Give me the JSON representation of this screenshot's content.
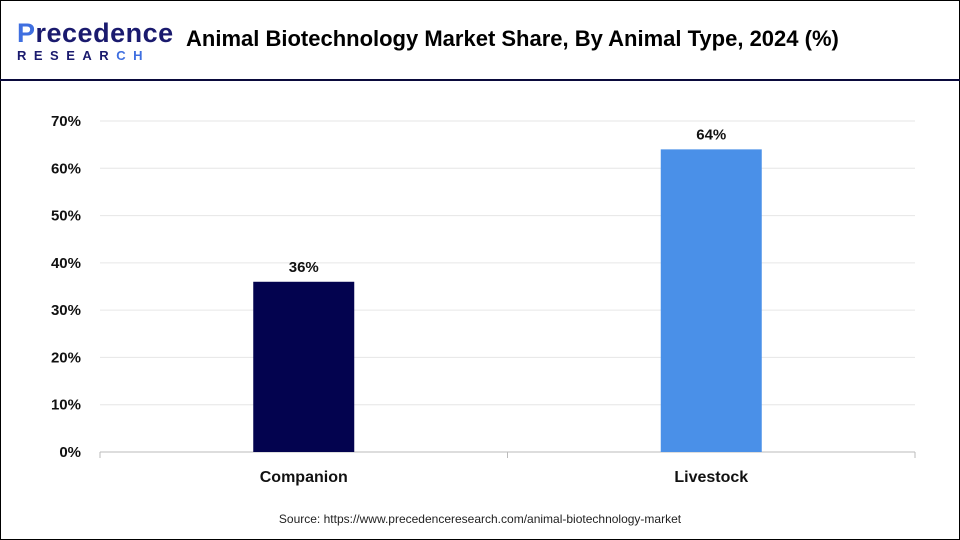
{
  "logo": {
    "line1": "Precedence",
    "line2": "RESEARCH"
  },
  "header": {
    "title": "Animal Biotechnology Market Share, By Animal Type, 2024 (%)"
  },
  "source": "Source: https://www.precedenceresearch.com/animal-biotechnology-market",
  "chart_data": {
    "type": "bar",
    "title": "Animal Biotechnology Market Share, By Animal Type, 2024 (%)",
    "categories": [
      "Companion",
      "Livestock"
    ],
    "values": [
      36,
      64
    ],
    "data_labels": [
      "36%",
      "64%"
    ],
    "colors": [
      "#03034f",
      "#4a90e8"
    ],
    "ylim": [
      0,
      70
    ],
    "yticks": [
      "0%",
      "10%",
      "20%",
      "30%",
      "40%",
      "50%",
      "60%",
      "70%"
    ],
    "grid": true,
    "xlabel": "",
    "ylabel": ""
  }
}
